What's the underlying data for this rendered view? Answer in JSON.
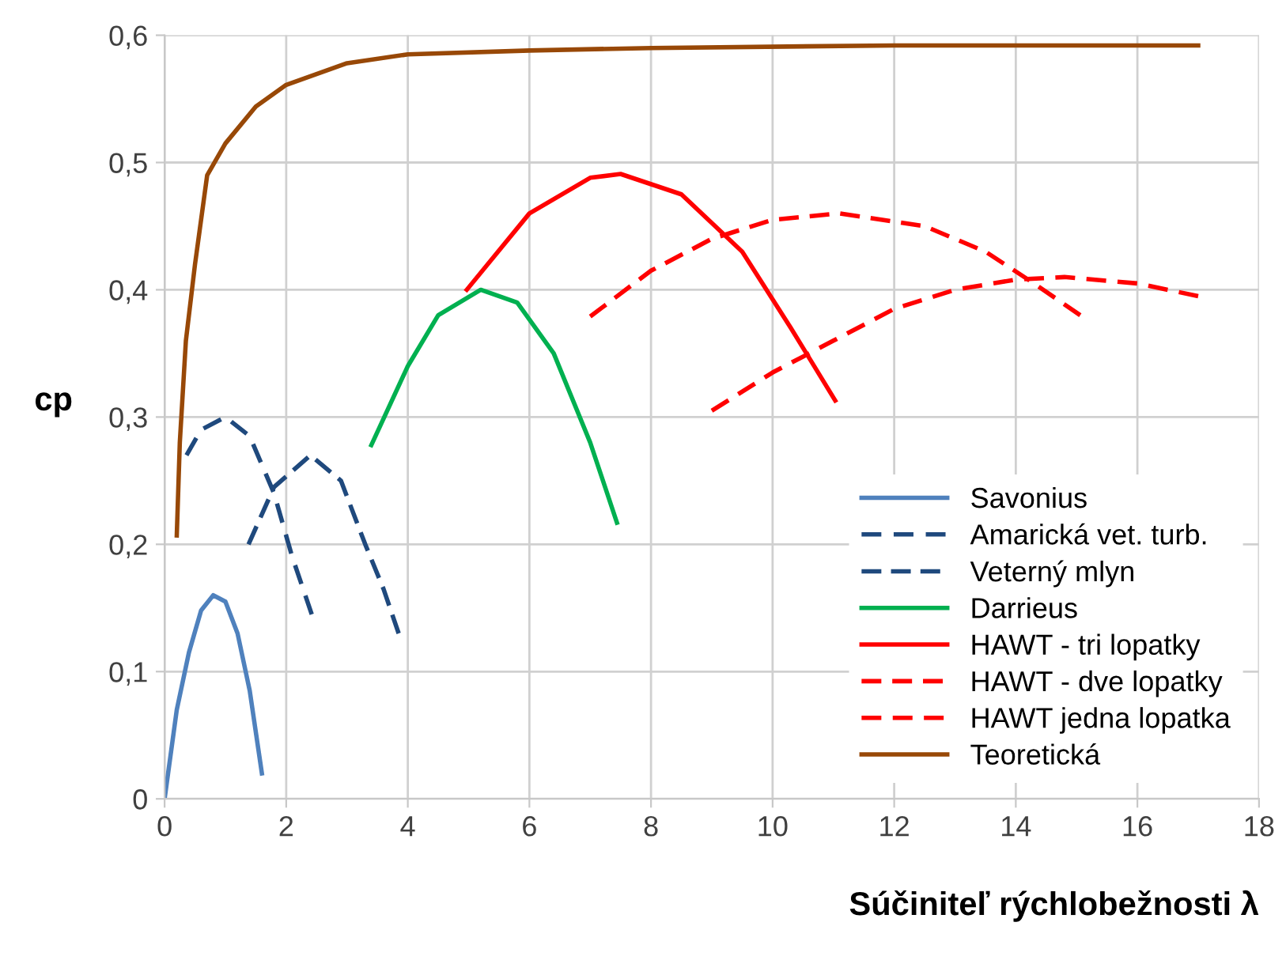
{
  "chart_data": {
    "type": "line",
    "xlabel": "Súčiniteľ rýchlobežnosti λ",
    "ylabel": "cp",
    "xlim": [
      0,
      18
    ],
    "xticks": [
      0,
      2,
      4,
      6,
      8,
      10,
      12,
      14,
      16,
      18
    ],
    "ylim": [
      0,
      0.6
    ],
    "yticks": [
      {
        "value": 0,
        "label": "0"
      },
      {
        "value": 0.1,
        "label": "0,1"
      },
      {
        "value": 0.2,
        "label": "0,2"
      },
      {
        "value": 0.3,
        "label": "0,3"
      },
      {
        "value": 0.4,
        "label": "0,4"
      },
      {
        "value": 0.5,
        "label": "0,5"
      },
      {
        "value": 0.6,
        "label": "0,6"
      }
    ],
    "grid": true,
    "legend": "bottom right",
    "marker": "none",
    "series": [
      {
        "name": "Savonius",
        "color": "#4f81bd",
        "line_style": "solid",
        "x": [
          0,
          0.2,
          0.4,
          0.6,
          0.8,
          1.0,
          1.2,
          1.4,
          1.6
        ],
        "values": [
          0,
          0.07,
          0.115,
          0.148,
          0.16,
          0.155,
          0.13,
          0.085,
          0.02
        ]
      },
      {
        "name": "Amarická vet. turb.",
        "color": "#1f497d",
        "line_style": "dashed",
        "x": [
          0.36,
          0.6,
          1.0,
          1.4,
          1.8,
          2.1,
          2.42
        ],
        "values": [
          0.27,
          0.29,
          0.3,
          0.285,
          0.24,
          0.19,
          0.145
        ]
      },
      {
        "name": "Veterný mlyn",
        "color": "#1f497d",
        "line_style": "dashed",
        "x": [
          1.38,
          1.8,
          2.4,
          2.9,
          3.3,
          3.6,
          3.85
        ],
        "values": [
          0.2,
          0.245,
          0.27,
          0.25,
          0.2,
          0.165,
          0.13
        ]
      },
      {
        "name": "Darrieus",
        "color": "#00b050",
        "line_style": "solid",
        "x": [
          3.4,
          4,
          4.5,
          5.2,
          5.8,
          6.4,
          7,
          7.44
        ],
        "values": [
          0.278,
          0.34,
          0.38,
          0.4,
          0.39,
          0.35,
          0.28,
          0.217
        ]
      },
      {
        "name": "HAWT - tri lopatky",
        "color": "#ff0000",
        "line_style": "solid",
        "x": [
          4.97,
          6,
          7,
          7.5,
          8.5,
          9.5,
          10.3,
          11.03
        ],
        "values": [
          0.4,
          0.46,
          0.488,
          0.491,
          0.475,
          0.43,
          0.37,
          0.313
        ]
      },
      {
        "name": "HAWT - dve lopatky",
        "color": "#ff0000",
        "line_style": "dashed",
        "x": [
          7,
          8,
          9,
          10,
          11.1,
          12.5,
          13.5,
          14.3,
          15.06
        ],
        "values": [
          0.379,
          0.415,
          0.44,
          0.455,
          0.46,
          0.45,
          0.43,
          0.405,
          0.38
        ]
      },
      {
        "name": "HAWT jedna lopatka",
        "color": "#ff0000",
        "line_style": "dashed",
        "x": [
          9,
          10,
          11,
          12,
          13,
          14,
          14.8,
          16,
          17
        ],
        "values": [
          0.305,
          0.335,
          0.36,
          0.385,
          0.4,
          0.408,
          0.41,
          0.405,
          0.395
        ]
      },
      {
        "name": "Teoretická",
        "color": "#984807",
        "line_style": "solid",
        "x": [
          0.2,
          0.25,
          0.35,
          0.5,
          0.7,
          1.0,
          1.5,
          2,
          3,
          4,
          6,
          8,
          12,
          17
        ],
        "values": [
          0.207,
          0.28,
          0.36,
          0.42,
          0.49,
          0.515,
          0.544,
          0.561,
          0.578,
          0.585,
          0.588,
          0.59,
          0.592,
          0.592
        ]
      }
    ]
  }
}
